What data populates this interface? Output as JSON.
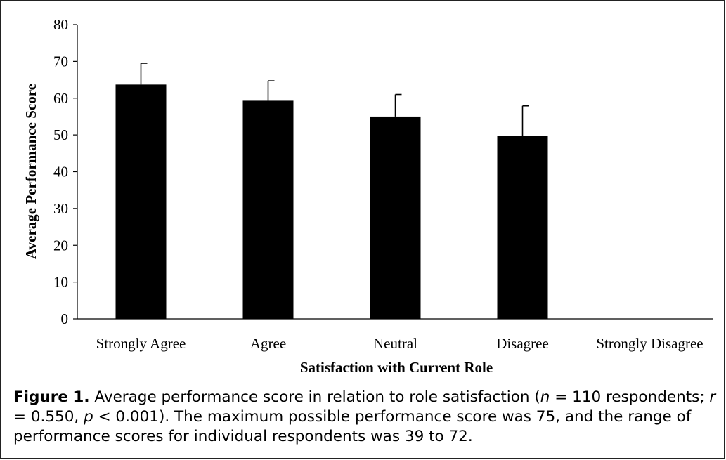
{
  "chart_data": {
    "type": "bar",
    "categories": [
      "Strongly Agree",
      "Agree",
      "Neutral",
      "Disagree",
      "Strongly Disagree"
    ],
    "values": [
      63.7,
      59.3,
      55.0,
      49.8,
      0
    ],
    "error_plus": [
      5.8,
      5.4,
      6.0,
      8.1,
      0
    ],
    "xlabel": "Satisfaction with Current Role",
    "ylabel": "Average Performance Score",
    "ylim": [
      0,
      80
    ],
    "yticks": [
      0,
      10,
      20,
      30,
      40,
      50,
      60,
      70,
      80
    ],
    "bar_color": "#000000",
    "grid": false,
    "legend": "none"
  },
  "caption": {
    "label": "Figure 1.",
    "text_1": " Average performance score in relation to role satisfaction (",
    "n_symbol": "n",
    "text_2": " = 110 respondents; ",
    "r_symbol": "r",
    "text_3": " = 0.550, ",
    "p_symbol": "p",
    "text_4": " < 0.001). The maximum possible performance score was 75, and the range of performance scores for individual respondents was 39 to 72."
  }
}
